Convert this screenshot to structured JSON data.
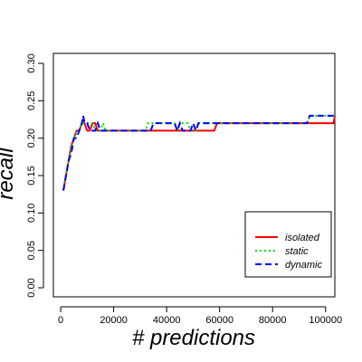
{
  "chart_data": {
    "type": "line",
    "xlabel": "# predictions",
    "ylabel": "recall",
    "xlim": [
      0,
      104000
    ],
    "ylim": [
      0.0,
      0.3
    ],
    "x_ticks": [
      0,
      20000,
      40000,
      60000,
      80000,
      100000
    ],
    "y_ticks": [
      0.0,
      0.05,
      0.1,
      0.15,
      0.2,
      0.25,
      0.3
    ],
    "x_tick_labels": [
      "0",
      "20000",
      "40000",
      "60000",
      "80000",
      "100000"
    ],
    "y_tick_labels": [
      "0.00",
      "0.05",
      "0.10",
      "0.15",
      "0.20",
      "0.25",
      "0.30"
    ],
    "grid": false,
    "legend_position": "bottom-right",
    "series": [
      {
        "name": "isolated",
        "color": "#ff0000",
        "dash": "solid",
        "points": [
          [
            1000,
            0.13
          ],
          [
            2000,
            0.15
          ],
          [
            3000,
            0.17
          ],
          [
            4000,
            0.19
          ],
          [
            5000,
            0.2
          ],
          [
            6000,
            0.21
          ],
          [
            7000,
            0.21
          ],
          [
            8000,
            0.22
          ],
          [
            9000,
            0.22
          ],
          [
            10000,
            0.21
          ],
          [
            11000,
            0.21
          ],
          [
            12000,
            0.22
          ],
          [
            13000,
            0.22
          ],
          [
            14000,
            0.21
          ],
          [
            20000,
            0.21
          ],
          [
            30000,
            0.21
          ],
          [
            40000,
            0.21
          ],
          [
            50000,
            0.21
          ],
          [
            58000,
            0.21
          ],
          [
            59000,
            0.22
          ],
          [
            80000,
            0.22
          ],
          [
            100000,
            0.22
          ],
          [
            103000,
            0.22
          ],
          [
            103500,
            0.23
          ]
        ]
      },
      {
        "name": "static",
        "color": "#00dd00",
        "dash": "dotted",
        "points": [
          [
            1000,
            0.13
          ],
          [
            2000,
            0.15
          ],
          [
            3000,
            0.17
          ],
          [
            4000,
            0.19
          ],
          [
            5000,
            0.2
          ],
          [
            6000,
            0.21
          ],
          [
            7000,
            0.21
          ],
          [
            8000,
            0.22
          ],
          [
            9000,
            0.22
          ],
          [
            12000,
            0.22
          ],
          [
            13000,
            0.21
          ],
          [
            15000,
            0.21
          ],
          [
            16000,
            0.22
          ],
          [
            17000,
            0.21
          ],
          [
            32000,
            0.21
          ],
          [
            33000,
            0.22
          ],
          [
            43000,
            0.22
          ],
          [
            44000,
            0.21
          ],
          [
            45000,
            0.22
          ],
          [
            48000,
            0.22
          ],
          [
            49000,
            0.21
          ],
          [
            51000,
            0.21
          ],
          [
            52000,
            0.22
          ],
          [
            93000,
            0.22
          ],
          [
            94000,
            0.23
          ],
          [
            103500,
            0.23
          ]
        ]
      },
      {
        "name": "dynamic",
        "color": "#0000ff",
        "dash": "dashed",
        "points": [
          [
            1000,
            0.13
          ],
          [
            2000,
            0.15
          ],
          [
            3000,
            0.17
          ],
          [
            4000,
            0.18
          ],
          [
            5000,
            0.2
          ],
          [
            6000,
            0.2
          ],
          [
            7000,
            0.21
          ],
          [
            8000,
            0.22
          ],
          [
            8500,
            0.23
          ],
          [
            9000,
            0.22
          ],
          [
            10000,
            0.22
          ],
          [
            11000,
            0.21
          ],
          [
            13000,
            0.21
          ],
          [
            14000,
            0.22
          ],
          [
            15000,
            0.21
          ],
          [
            34000,
            0.21
          ],
          [
            35000,
            0.22
          ],
          [
            43000,
            0.22
          ],
          [
            44000,
            0.21
          ],
          [
            45000,
            0.22
          ],
          [
            46000,
            0.21
          ],
          [
            49000,
            0.21
          ],
          [
            50000,
            0.22
          ],
          [
            51000,
            0.21
          ],
          [
            52000,
            0.22
          ],
          [
            93000,
            0.22
          ],
          [
            94000,
            0.23
          ],
          [
            103500,
            0.23
          ]
        ]
      }
    ]
  }
}
